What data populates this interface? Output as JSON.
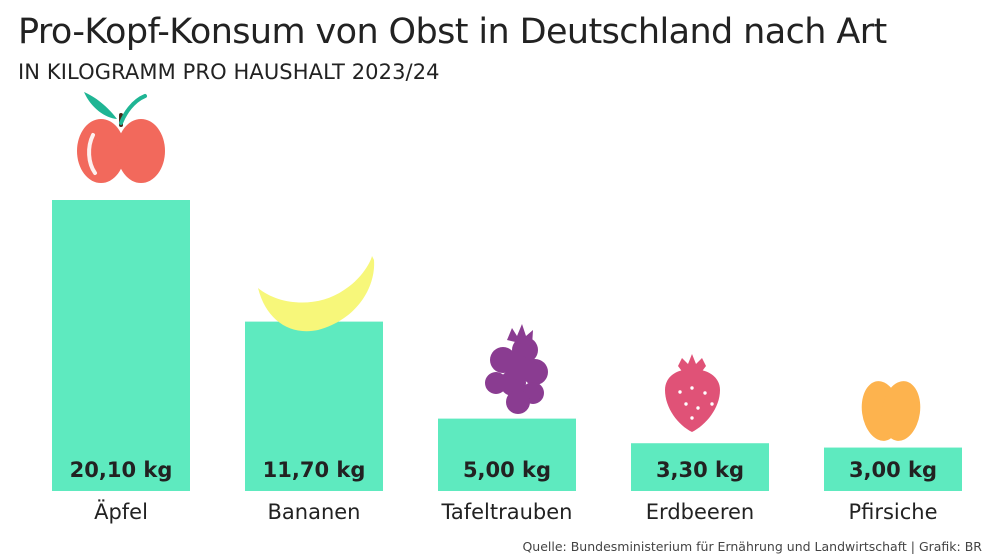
{
  "chart_data": {
    "type": "bar",
    "title": "Pro-Kopf-Konsum von Obst in Deutschland nach Art",
    "subtitle": "IN KILOGRAMM PRO HAUSHALT 2023/24",
    "categories": [
      "Äpfel",
      "Bananen",
      "Tafeltrauben",
      "Erdbeeren",
      "Pfirsiche"
    ],
    "values": [
      20.1,
      11.7,
      5.0,
      3.3,
      3.0
    ],
    "value_labels": [
      "20,10 kg",
      "11,70 kg",
      "5,00 kg",
      "3,30 kg",
      "3,00 kg"
    ],
    "unit": "kg",
    "ylim": [
      0,
      20.1
    ],
    "grid": false,
    "bar_color": "#5eeabf",
    "icons": [
      "apple-icon",
      "banana-icon",
      "grapes-icon",
      "strawberry-icon",
      "peach-icon"
    ]
  },
  "source": "Quelle: Bundesministerium für Ernährung und Landwirtschaft | Grafik: BR",
  "colors": {
    "apple": "#f2695c",
    "leaf": "#1fb594",
    "banana": "#f7f77a",
    "grapes": "#8a3c91",
    "strawberry": "#e05277",
    "peach": "#fdb34e"
  }
}
